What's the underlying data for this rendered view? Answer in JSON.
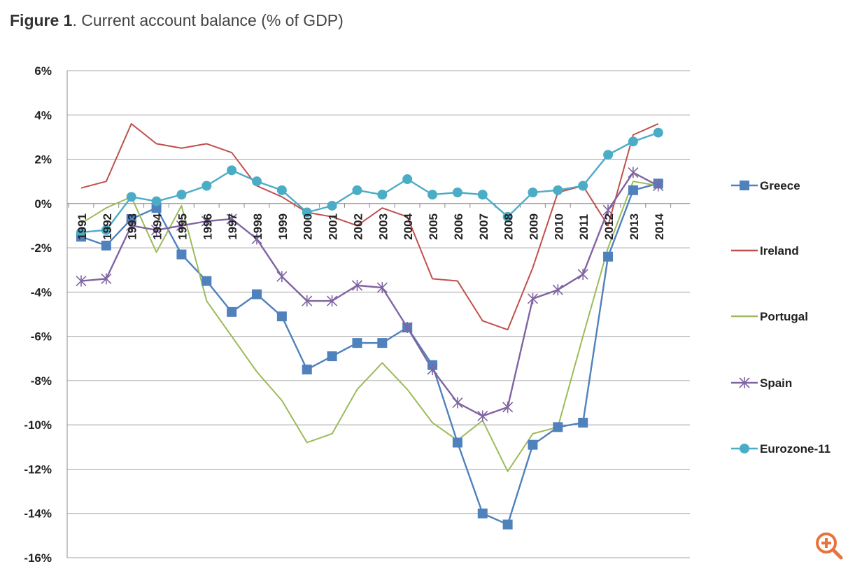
{
  "title": {
    "prefix": "Figure 1",
    "rest": ". Current account balance (% of GDP)"
  },
  "colors": {
    "grid": "#a6a6a6",
    "axis": "#8c8c8c",
    "tick_text": "#222222",
    "zoom": "#e8743b"
  },
  "icons": {
    "zoom": "zoom-in-icon"
  },
  "chart_data": {
    "type": "line",
    "x": [
      "1991",
      "1992",
      "1993",
      "1994",
      "1995",
      "1996",
      "1997",
      "1998",
      "1999",
      "2000",
      "2001",
      "2002",
      "2003",
      "2004",
      "2005",
      "2006",
      "2007",
      "2008",
      "2009",
      "2010",
      "2011",
      "2012",
      "2013",
      "2014"
    ],
    "y_ticks": [
      "6%",
      "4%",
      "2%",
      "0%",
      "-2%",
      "-4%",
      "-6%",
      "-8%",
      "-10%",
      "-12%",
      "-14%",
      "-16%"
    ],
    "ylim": [
      -16,
      6
    ],
    "grid": true,
    "legend_position": "right",
    "series": [
      {
        "name": "Greece",
        "color": "#4f81bd",
        "marker": "square",
        "values": [
          -1.5,
          -1.9,
          -0.7,
          -0.2,
          -2.3,
          -3.5,
          -4.9,
          -4.1,
          -5.1,
          -7.5,
          -6.9,
          -6.3,
          -6.3,
          -5.6,
          -7.3,
          -10.8,
          -14.0,
          -14.5,
          -10.9,
          -10.1,
          -9.9,
          -2.4,
          0.6,
          0.9
        ]
      },
      {
        "name": "Ireland",
        "color": "#c0504d",
        "marker": "none",
        "values": [
          0.7,
          1.0,
          3.6,
          2.7,
          2.5,
          2.7,
          2.3,
          0.8,
          0.3,
          -0.4,
          -0.6,
          -1.0,
          -0.2,
          -0.6,
          -3.4,
          -3.5,
          -5.3,
          -5.7,
          -2.9,
          0.5,
          0.8,
          -1.0,
          3.1,
          3.6
        ]
      },
      {
        "name": "Portugal",
        "color": "#9bbb59",
        "marker": "none",
        "values": [
          -0.9,
          -0.2,
          0.3,
          -2.2,
          -0.1,
          -4.4,
          -6.0,
          -7.6,
          -8.9,
          -10.8,
          -10.4,
          -8.4,
          -7.2,
          -8.4,
          -9.9,
          -10.7,
          -9.8,
          -12.1,
          -10.4,
          -10.1,
          -6.0,
          -2.0,
          1.0,
          0.8
        ]
      },
      {
        "name": "Spain",
        "color": "#8064a2",
        "marker": "star",
        "values": [
          -3.5,
          -3.4,
          -1.0,
          -1.2,
          -1.0,
          -0.8,
          -0.7,
          -1.6,
          -3.3,
          -4.4,
          -4.4,
          -3.7,
          -3.8,
          -5.6,
          -7.5,
          -9.0,
          -9.6,
          -9.2,
          -4.3,
          -3.9,
          -3.2,
          -0.3,
          1.4,
          0.8
        ]
      },
      {
        "name": "Eurozone-11",
        "color": "#4bacc6",
        "marker": "circle",
        "values": [
          -1.3,
          -1.2,
          0.3,
          0.1,
          0.4,
          0.8,
          1.5,
          1.0,
          0.6,
          -0.4,
          -0.1,
          0.6,
          0.4,
          1.1,
          0.4,
          0.5,
          0.4,
          -0.6,
          0.5,
          0.6,
          0.8,
          2.2,
          2.8,
          3.2
        ]
      }
    ]
  }
}
